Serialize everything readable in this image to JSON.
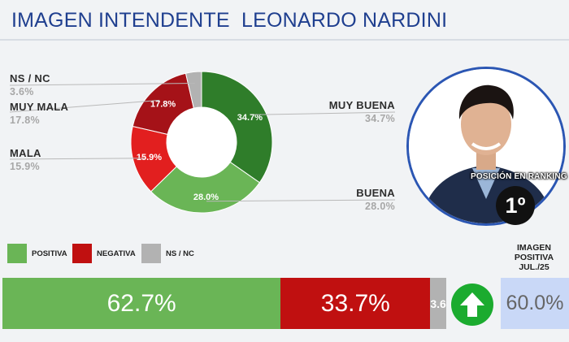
{
  "title": "IMAGEN INTENDENTE  LEONARDO NARDINI",
  "chart_data": [
    {
      "type": "pie",
      "categories": [
        "MUY BUENA",
        "BUENA",
        "MALA",
        "MUY MALA",
        "NS / NC"
      ],
      "values": [
        34.7,
        28.0,
        15.9,
        17.8,
        3.6
      ],
      "value_labels": [
        "34.7%",
        "28.0%",
        "15.9%",
        "17.8%",
        "3.6%"
      ],
      "colors": [
        "#2f7d2a",
        "#6ab556",
        "#e21f1f",
        "#a51218",
        "#b2b2b2"
      ],
      "hole": true
    },
    {
      "type": "bar",
      "orientation": "horizontal-stacked",
      "categories": [
        "POSITIVA",
        "NEGATIVA",
        "NS / NC"
      ],
      "values": [
        62.7,
        33.7,
        3.6
      ],
      "value_labels": [
        "62.7%",
        "33.7%",
        "3.6%"
      ],
      "colors": [
        "#6ab556",
        "#c01010",
        "#b2b2b2"
      ]
    }
  ],
  "donut_labels": [
    {
      "name": "NS / NC",
      "value": "3.6%"
    },
    {
      "name": "MUY MALA",
      "value": "17.8%"
    },
    {
      "name": "MALA",
      "value": "15.9%"
    },
    {
      "name": "MUY BUENA",
      "value": "34.7%"
    },
    {
      "name": "BUENA",
      "value": "28.0%"
    }
  ],
  "legend": [
    "POSITIVA",
    "NEGATIVA",
    "NS / NC"
  ],
  "ranking": {
    "label": "POSICIÓN EN RANKING",
    "value": "1º"
  },
  "image_positive": {
    "label_line1": "IMAGEN",
    "label_line2": "POSITIVA",
    "label_line3": "JUL./25",
    "value": "60.0%"
  },
  "icons": {
    "trend": "up-arrow-icon"
  },
  "colors": {
    "title": "#1f3f8f",
    "photo_border": "#2b56b3",
    "arrow_bg": "#1bab2f",
    "box_bg": "#c9d8f7"
  }
}
